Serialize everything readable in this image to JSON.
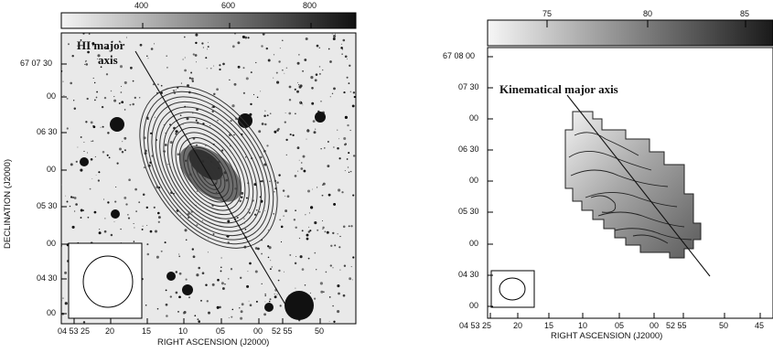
{
  "left_panel": {
    "colorbar_ticks": [
      "400",
      "600",
      "800"
    ],
    "dec_ticks": [
      "67 07 30",
      "00",
      "06 30",
      "00",
      "05 30",
      "00",
      "04 30",
      "00"
    ],
    "ra_ticks": [
      "04 53 25",
      "20",
      "15",
      "10",
      "05",
      "00",
      "52 55",
      "50"
    ],
    "ylabel": "DECLINATION (J2000)",
    "xlabel": "RIGHT ASCENSION (J2000)",
    "annotation_line1": "HI major",
    "annotation_line2": "axis"
  },
  "right_panel": {
    "colorbar_ticks": [
      "75",
      "80",
      "85"
    ],
    "dec_ticks": [
      "67 08 00",
      "07 30",
      "00",
      "06 30",
      "00",
      "05 30",
      "00",
      "04 30",
      "00"
    ],
    "ra_ticks": [
      "04 53 25",
      "20",
      "15",
      "10",
      "05",
      "00",
      "52 55",
      "50",
      "45"
    ],
    "xlabel": "RIGHT ASCENSION (J2000)",
    "annotation": "Kinematical major axis"
  }
}
